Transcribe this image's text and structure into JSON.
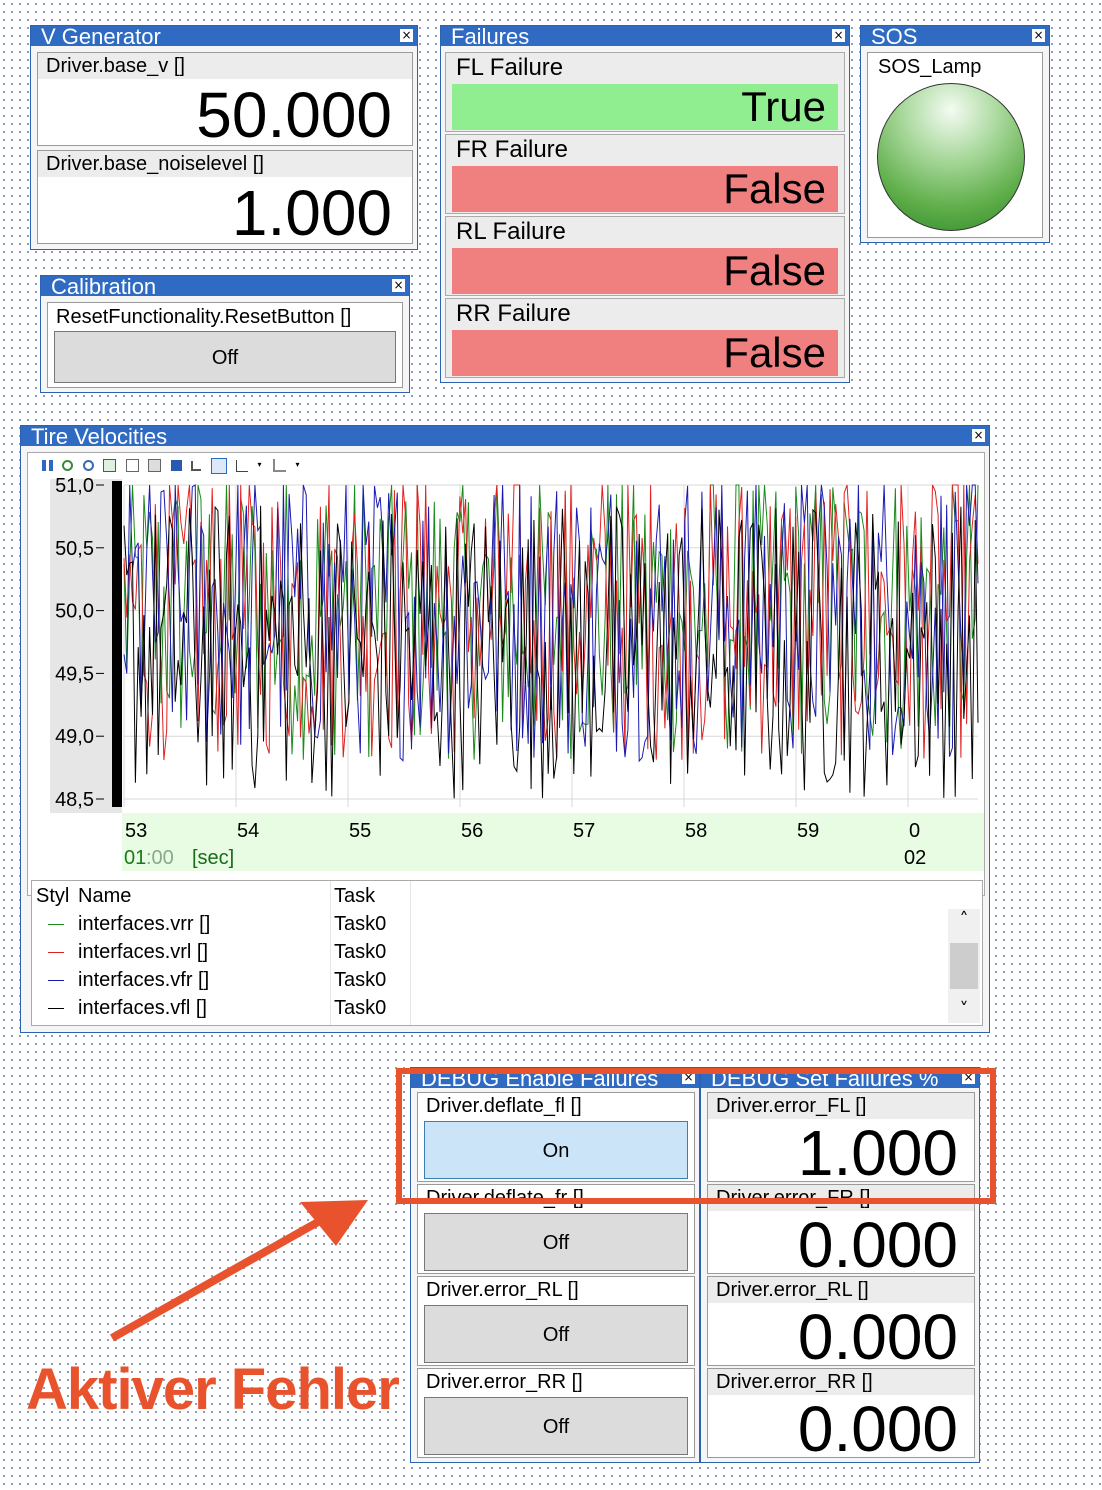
{
  "vgen": {
    "title": "V Generator",
    "close": "×",
    "base_v_label": "Driver.base_v []",
    "base_v_value": "50.000",
    "noise_label": "Driver.base_noiselevel []",
    "noise_value": "1.000"
  },
  "calibration": {
    "title": "Calibration",
    "close": "×",
    "label": "ResetFunctionality.ResetButton []",
    "button": "Off"
  },
  "failures": {
    "title": "Failures",
    "close": "×",
    "items": [
      {
        "label": "FL Failure",
        "value": "True",
        "color": "#90ee90"
      },
      {
        "label": "FR Failure",
        "value": "False",
        "color": "#f08080"
      },
      {
        "label": "RL Failure",
        "value": "False",
        "color": "#f08080"
      },
      {
        "label": "RR Failure",
        "value": "False",
        "color": "#f08080"
      }
    ]
  },
  "sos": {
    "title": "SOS",
    "close": "×",
    "label": "SOS_Lamp"
  },
  "tire": {
    "title": "Tire Velocities",
    "close": "×",
    "time_prefix": "01",
    "time_sep": ":00",
    "time_unit": "[sec]",
    "time_right": "02",
    "legend": {
      "col_style": "Styl",
      "col_name": "Name",
      "col_task": "Task",
      "rows": [
        {
          "name": "interfaces.vrr []",
          "task": "Task0",
          "color": "#1a8a1a"
        },
        {
          "name": "interfaces.vrl []",
          "task": "Task0",
          "color": "#e02020"
        },
        {
          "name": "interfaces.vfr []",
          "task": "Task0",
          "color": "#1a1ab0"
        },
        {
          "name": "interfaces.vfl []",
          "task": "Task0",
          "color": "#000000"
        }
      ]
    },
    "scroll_up": "˄",
    "scroll_down": "˅"
  },
  "chart_data": {
    "type": "line",
    "ylim": [
      48.5,
      51.0
    ],
    "yticks": [
      "51,0",
      "50,5",
      "50,0",
      "49,5",
      "49,0",
      "48,5"
    ],
    "xticks": [
      "53",
      "54",
      "55",
      "56",
      "57",
      "58",
      "59",
      "0"
    ],
    "series": [
      {
        "name": "interfaces.vrr []",
        "color": "#1a8a1a",
        "mean": 50.0,
        "noise": 1.0
      },
      {
        "name": "interfaces.vrl []",
        "color": "#e02020",
        "mean": 50.0,
        "noise": 1.0
      },
      {
        "name": "interfaces.vfr []",
        "color": "#1a1ab0",
        "mean": 50.0,
        "noise": 1.0
      },
      {
        "name": "interfaces.vfl []",
        "color": "#000000",
        "mean": 49.7,
        "noise": 1.0
      }
    ]
  },
  "debug_enable": {
    "title": "DEBUG Enable Failures",
    "close": "×",
    "items": [
      {
        "label": "Driver.deflate_fl []",
        "button": "On",
        "active": true
      },
      {
        "label": "Driver.deflate_fr []",
        "button": "Off",
        "active": false
      },
      {
        "label": "Driver.error_RL []",
        "button": "Off",
        "active": false
      },
      {
        "label": "Driver.error_RR []",
        "button": "Off",
        "active": false
      }
    ]
  },
  "debug_set": {
    "title": "DEBUG Set Failures %",
    "close": "×",
    "items": [
      {
        "label": "Driver.error_FL []",
        "value": "1.000"
      },
      {
        "label": "Driver.error_FR []",
        "value": "0.000"
      },
      {
        "label": "Driver.error_RL []",
        "value": "0.000"
      },
      {
        "label": "Driver.error_RR []",
        "value": "0.000"
      }
    ]
  },
  "annotation": {
    "text": "Aktiver Fehler",
    "color": "#e8532d"
  }
}
